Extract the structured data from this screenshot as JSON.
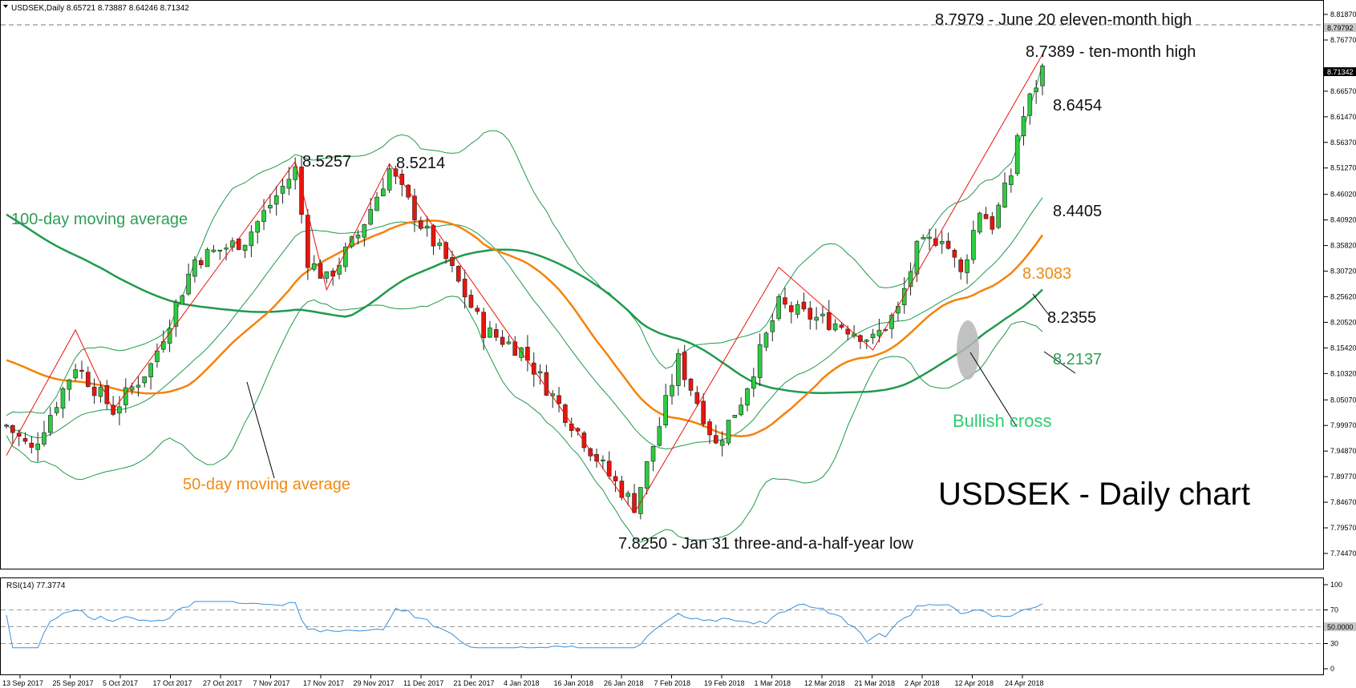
{
  "header": {
    "symbol_line": "USDSEK,Daily  8.65721 8.73887 8.64246 8.71342",
    "rsi_line": "RSI(14) 77.3774"
  },
  "colors": {
    "bull": "#2ecc40",
    "bear": "#e8150c",
    "ma50": "#f5820a",
    "ma100": "#1f9a4c",
    "bollinger": "#1f9a4c",
    "trend": "#e8150c",
    "rsi": "#3a8fd8",
    "label_green": "#2e9e56",
    "label_orange": "#f08a12",
    "bullish_cross": "#2ecc71"
  },
  "chart_data": {
    "type": "candlestick",
    "price_axis": {
      "ticks": [
        "8.81870",
        "8.76770",
        "8.66570",
        "8.61470",
        "8.56370",
        "8.51270",
        "8.46020",
        "8.40920",
        "8.35820",
        "8.30720",
        "8.25620",
        "8.20520",
        "8.15420",
        "8.10320",
        "8.05070",
        "7.99970",
        "7.94870",
        "7.89770",
        "7.84670",
        "7.79570",
        "7.74470"
      ],
      "ylim": [
        7.7447,
        8.8187
      ],
      "markers": [
        {
          "label": "8.79792",
          "value": 8.79792,
          "style": "grey"
        },
        {
          "label": "8.71342",
          "value": 8.71342,
          "style": "black"
        }
      ]
    },
    "x_labels": [
      "13 Sep 2017",
      "25 Sep 2017",
      "5 Oct 2017",
      "17 Oct 2017",
      "27 Oct 2017",
      "7 Nov 2017",
      "17 Nov 2017",
      "29 Nov 2017",
      "11 Dec 2017",
      "21 Dec 2017",
      "4 Jan 2018",
      "16 Jan 2018",
      "26 Jan 2018",
      "7 Feb 2018",
      "19 Feb 2018",
      "1 Mar 2018",
      "12 Mar 2018",
      "21 Mar 2018",
      "2 Apr 2018",
      "12 Apr 2018",
      "24 Apr 2018"
    ],
    "reference_level": 8.7979,
    "series_names": {
      "ma100": "100-day moving average",
      "ma50": "50-day moving average"
    },
    "annotations": {
      "june_high": "8.7979 - June 20 eleven-month high",
      "ten_month_high": "8.7389 - ten-month high",
      "upper_band": "8.6454",
      "nov_high": "8.5257",
      "dec_high": "8.5214",
      "mid_band": "8.4405",
      "ma50_value": "8.3083",
      "lower_band": "8.2355",
      "ma100_value": "8.2137",
      "bullish_cross": "Bullish cross",
      "title": "USDSEK - Daily chart",
      "jan_low": "7.8250 - Jan 31 three-and-a-half-year low"
    },
    "rsi": {
      "period": 14,
      "last": 77.3774,
      "ylim": [
        0,
        100
      ],
      "ticks": [
        "100",
        "70",
        "50.0000",
        "30",
        "0"
      ],
      "level_lines": [
        70,
        50,
        30
      ]
    }
  }
}
